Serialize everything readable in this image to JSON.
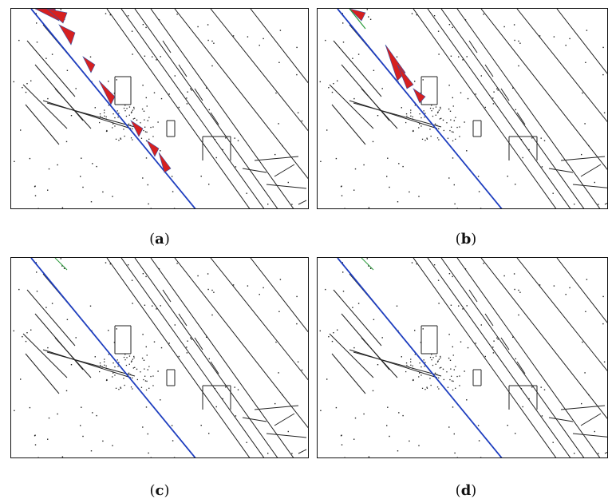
{
  "figure": {
    "panels": [
      {
        "label": "a",
        "open": "(",
        "close": ")",
        "residual": "high"
      },
      {
        "label": "b",
        "open": "(",
        "close": ")",
        "residual": "medium"
      },
      {
        "label": "c",
        "open": "(",
        "close": ")",
        "residual": "none"
      },
      {
        "label": "d",
        "open": "(",
        "close": ")",
        "residual": "none"
      }
    ],
    "colors": {
      "edges": "#222222",
      "fit_line": "#1f3fbf",
      "residual": "#d62020",
      "accent_green": "#2a9a3a"
    }
  }
}
